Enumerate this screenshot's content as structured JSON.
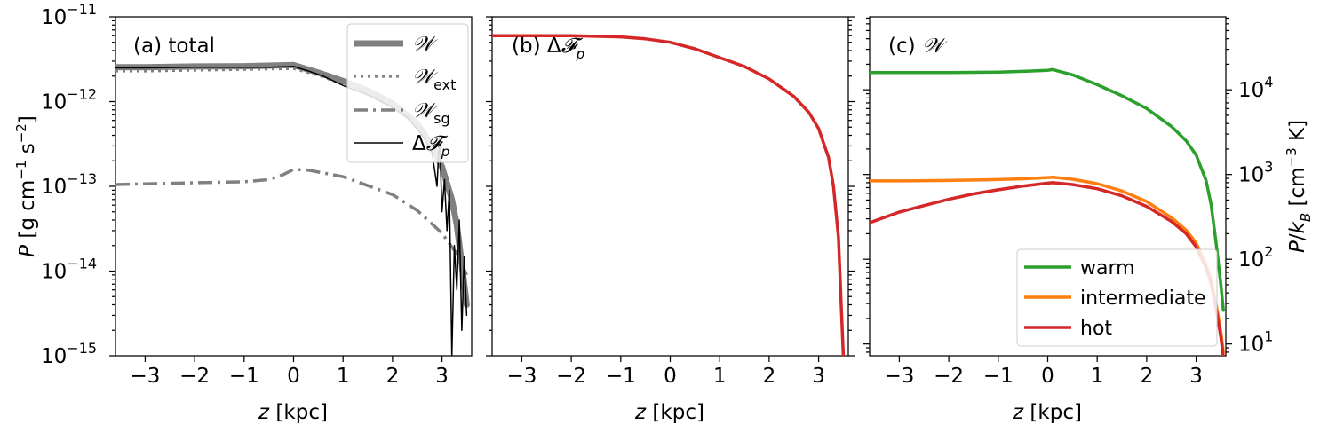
{
  "chart_data": [
    {
      "panel": "a",
      "type": "line",
      "annotation": "(a) total",
      "xlabel": "z [kpc]",
      "ylabel": "P [g cm^-1 s^-2]",
      "xlim": [
        -3.6,
        3.6
      ],
      "ylim": [
        1e-15,
        1e-11
      ],
      "yscale": "log",
      "xticks": [
        -3,
        -2,
        -1,
        0,
        1,
        2,
        3
      ],
      "xtick_labels": [
        "−3",
        "−2",
        "−1",
        "0",
        "1",
        "2",
        "3"
      ],
      "yticks": [
        1e-15,
        1e-14,
        1e-13,
        1e-12,
        1e-11
      ],
      "ytick_labels": [
        "10",
        "10",
        "10",
        "10",
        "10"
      ],
      "ytick_exponents": [
        "−15",
        "−14",
        "−13",
        "−12",
        "−11"
      ],
      "legend_position": "upper-right",
      "series": [
        {
          "name": "𝒲",
          "color": "#808080",
          "style": "solid-thick",
          "x": [
            -3.6,
            -3.0,
            -2.0,
            -1.0,
            0.0,
            0.5,
            1.0,
            1.5,
            2.0,
            2.5,
            2.8,
            3.0,
            3.2,
            3.3,
            3.4,
            3.5
          ],
          "y": [
            2.55e-12,
            2.55e-12,
            2.6e-12,
            2.62e-12,
            2.7e-12,
            2.2e-12,
            1.75e-12,
            1.35e-12,
            9.5e-13,
            5.5e-13,
            3e-13,
            1.7e-13,
            7e-14,
            3.5e-14,
            1.2e-14,
            4e-15
          ]
        },
        {
          "name": "𝒲ext",
          "color": "#808080",
          "style": "dotted",
          "x": [
            -3.6,
            -3.0,
            -2.0,
            -1.0,
            0.0,
            0.5,
            1.0,
            1.5,
            2.0,
            2.5,
            2.8,
            3.0,
            3.2,
            3.3,
            3.4,
            3.5
          ],
          "y": [
            2.3e-12,
            2.3e-12,
            2.35e-12,
            2.4e-12,
            2.45e-12,
            2.05e-12,
            1.6e-12,
            1.25e-12,
            8.8e-13,
            5.2e-13,
            2.9e-13,
            1.6e-13,
            6.5e-14,
            3.2e-14,
            1.1e-14,
            3.8e-15
          ]
        },
        {
          "name": "𝒲sg",
          "color": "#808080",
          "style": "dashdot",
          "x": [
            -3.6,
            -3.0,
            -2.0,
            -1.0,
            -0.5,
            -0.2,
            0.0,
            0.3,
            1.0,
            2.0,
            2.5,
            3.0,
            3.3,
            3.5
          ],
          "y": [
            1.05e-13,
            1.07e-13,
            1.1e-13,
            1.13e-13,
            1.2e-13,
            1.38e-13,
            1.58e-13,
            1.55e-13,
            1.3e-13,
            8e-14,
            5.2e-14,
            2.8e-14,
            1.6e-14,
            9e-15
          ]
        },
        {
          "name": "Δ𝓕p",
          "color": "#000000",
          "style": "solid-thin",
          "x": [
            -3.6,
            -3.0,
            -2.0,
            -1.0,
            -0.5,
            0.0,
            0.3,
            0.6,
            1.0,
            1.5,
            2.0,
            2.3,
            2.6,
            2.8,
            2.9,
            2.95,
            3.0,
            3.05,
            3.1,
            3.15,
            3.2,
            3.25,
            3.3,
            3.35,
            3.4,
            3.45,
            3.5
          ],
          "y": [
            2.5e-12,
            2.5e-12,
            2.55e-12,
            2.55e-12,
            2.55e-12,
            2.6e-12,
            2.3e-12,
            2e-12,
            1.55e-12,
            1.2e-12,
            8.5e-13,
            6.5e-13,
            4e-13,
            2.5e-13,
            1e-13,
            4e-13,
            5e-14,
            1.2e-13,
            3e-14,
            9e-14,
            1e-15,
            2e-14,
            6e-15,
            4e-14,
            2e-15,
            1.5e-14,
            3e-15
          ]
        }
      ]
    },
    {
      "panel": "b",
      "type": "line",
      "annotation": "(b) Δ𝓕p",
      "xlabel": "z [kpc]",
      "xlim": [
        -3.6,
        3.6
      ],
      "ylim": [
        1e-15,
        1e-11
      ],
      "yscale": "log",
      "xticks": [
        -3,
        -2,
        -1,
        0,
        1,
        2,
        3
      ],
      "xtick_labels": [
        "−3",
        "−2",
        "−1",
        "0",
        "1",
        "2",
        "3"
      ],
      "series": [
        {
          "name": "",
          "color": "#d62728",
          "style": "solid",
          "x": [
            -3.6,
            -3.0,
            -2.0,
            -1.0,
            -0.5,
            0.0,
            0.5,
            1.0,
            1.5,
            2.0,
            2.5,
            2.8,
            3.0,
            3.2,
            3.3,
            3.4,
            3.45,
            3.5
          ],
          "y": [
            6e-12,
            6e-12,
            6e-12,
            5.8e-12,
            5.5e-12,
            5e-12,
            4.2e-12,
            3.3e-12,
            2.6e-12,
            1.85e-12,
            1.15e-12,
            7.5e-13,
            4.8e-13,
            2.2e-13,
            1e-13,
            2.5e-14,
            5e-15,
            1e-15
          ]
        }
      ]
    },
    {
      "panel": "c",
      "type": "line",
      "annotation": "(c) 𝒲",
      "xlabel": "z [kpc]",
      "ylabel_right": "P/k_B [cm^-3 K]",
      "xlim": [
        -3.6,
        3.6
      ],
      "ylim": [
        7.25,
        72500
      ],
      "yscale": "log",
      "xticks": [
        -3,
        -2,
        -1,
        0,
        1,
        2,
        3
      ],
      "xtick_labels": [
        "−3",
        "−2",
        "−1",
        "0",
        "1",
        "2",
        "3"
      ],
      "yticks": [
        10,
        100,
        1000,
        10000
      ],
      "ytick_labels": [
        "10",
        "10",
        "10",
        "10"
      ],
      "ytick_exponents": [
        "1",
        "2",
        "3",
        "4"
      ],
      "legend_position": "lower-right",
      "series": [
        {
          "name": "warm",
          "color": "#2ca02c",
          "style": "solid",
          "x": [
            -3.6,
            -3.0,
            -2.0,
            -1.0,
            -0.5,
            0.0,
            0.1,
            0.5,
            1.0,
            1.5,
            2.0,
            2.5,
            2.8,
            3.0,
            3.2,
            3.3,
            3.4,
            3.5,
            3.55
          ],
          "y": [
            16000,
            16000,
            16000,
            16200,
            16500,
            17000,
            17300,
            15000,
            11500,
            8500,
            6000,
            3700,
            2500,
            1700,
            850,
            450,
            160,
            50,
            25
          ]
        },
        {
          "name": "intermediate",
          "color": "#ff7f0e",
          "style": "solid",
          "x": [
            -3.6,
            -3.0,
            -2.0,
            -1.0,
            -0.5,
            0.0,
            0.1,
            0.5,
            1.0,
            1.5,
            2.0,
            2.5,
            2.8,
            3.0,
            3.2,
            3.3,
            3.4,
            3.5,
            3.55
          ],
          "y": [
            840,
            840,
            850,
            870,
            890,
            920,
            930,
            880,
            780,
            640,
            480,
            310,
            220,
            155,
            88,
            58,
            30,
            14,
            8
          ]
        },
        {
          "name": "hot",
          "color": "#d62728",
          "style": "solid",
          "x": [
            -3.6,
            -3.0,
            -2.5,
            -2.0,
            -1.5,
            -1.0,
            -0.5,
            0.0,
            0.1,
            0.5,
            1.0,
            1.5,
            2.0,
            2.5,
            2.8,
            3.0,
            3.2,
            3.3,
            3.4,
            3.5,
            3.55
          ],
          "y": [
            270,
            360,
            430,
            510,
            590,
            660,
            730,
            790,
            800,
            760,
            680,
            560,
            420,
            280,
            200,
            140,
            80,
            52,
            27,
            12,
            7
          ]
        }
      ]
    }
  ]
}
